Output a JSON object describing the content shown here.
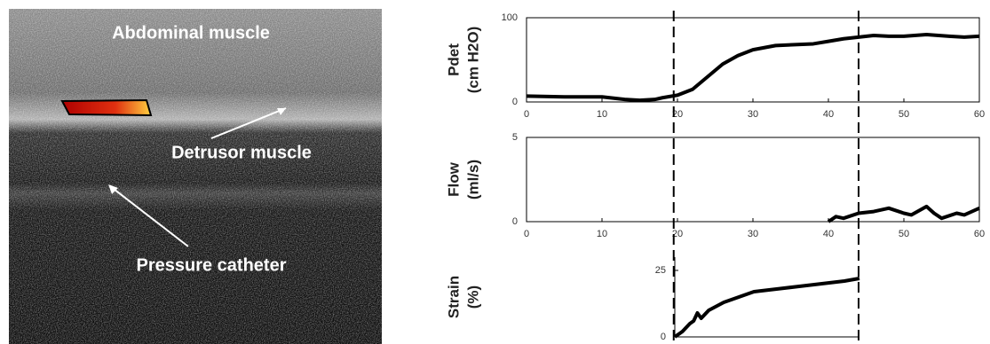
{
  "image": {
    "labels": [
      "Abdominal muscle",
      "Detrusor muscle",
      "Pressure catheter"
    ]
  },
  "chart_data": [
    {
      "type": "line",
      "ylabel": [
        "Pdet",
        "(cm H2O)"
      ],
      "x": [
        0,
        5,
        10,
        13,
        15,
        17,
        18,
        20,
        22,
        24,
        26,
        28,
        30,
        33,
        38,
        40,
        42,
        44,
        46,
        48,
        50,
        53,
        56,
        58,
        60
      ],
      "series": [
        {
          "color": "#000000",
          "values": [
            7,
            6,
            6,
            3,
            2,
            3,
            5,
            8,
            15,
            30,
            45,
            55,
            62,
            67,
            69,
            72,
            75,
            77,
            79,
            78,
            78,
            80,
            78,
            77,
            78
          ]
        }
      ],
      "xlim": [
        0,
        60
      ],
      "xticks": [
        0,
        10,
        20,
        30,
        40,
        50,
        60
      ],
      "ylim": [
        0,
        100
      ],
      "yticks": [
        0,
        100
      ],
      "vlines": [
        19.5,
        44
      ]
    },
    {
      "type": "line",
      "ylabel": [
        "Flow",
        "(ml/s)"
      ],
      "x": [
        40,
        41,
        42,
        44,
        46,
        48,
        50,
        51,
        53,
        54,
        55,
        57,
        58,
        60
      ],
      "series": [
        {
          "color": "#000000",
          "values": [
            0,
            0.3,
            0.2,
            0.5,
            0.6,
            0.8,
            0.5,
            0.4,
            0.9,
            0.5,
            0.2,
            0.5,
            0.4,
            0.8
          ]
        }
      ],
      "xlim": [
        0,
        60
      ],
      "xticks": [
        0,
        10,
        20,
        30,
        40,
        50,
        60
      ],
      "ylim": [
        0,
        5
      ],
      "yticks": [
        0,
        5
      ]
    },
    {
      "type": "line",
      "ylabel": [
        "Strain",
        "(%)"
      ],
      "x": [
        19.5,
        20.5,
        21.5,
        22,
        22.5,
        23,
        24,
        26,
        28,
        30,
        33,
        36,
        39,
        42,
        44
      ],
      "series": [
        {
          "color": "#000000",
          "values": [
            0,
            2,
            5,
            6,
            9,
            7,
            10,
            13,
            15,
            17,
            18,
            19,
            20,
            21,
            22
          ]
        }
      ],
      "xlim": [
        19.5,
        44
      ],
      "ylim": [
        0,
        30
      ],
      "yticks": [
        0,
        25
      ]
    }
  ]
}
